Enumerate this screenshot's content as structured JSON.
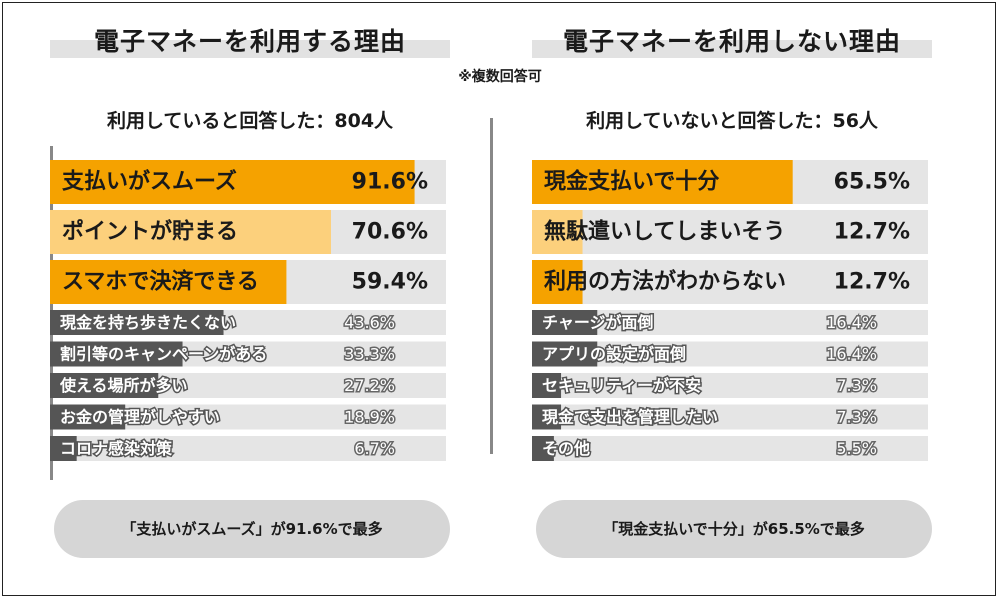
{
  "note": "※複数回答可",
  "colors": {
    "top1": "#f5a200",
    "top2": "#fcd07c",
    "track": "#e5e5e5",
    "minor_bar": "#555555",
    "divider": "#888888",
    "pill": "#d6d6d6"
  },
  "chart_data": [
    {
      "type": "bar",
      "orientation": "horizontal",
      "title": "電子マネーを利用する理由",
      "respondents": "利用していると回答した：804人",
      "summary": "「支払いがスムーズ」が91.6%で最多",
      "unit": "%",
      "xlim": [
        0,
        100
      ],
      "categories": [
        "支払いがスムーズ",
        "ポイントが貯まる",
        "スマホで決済できる",
        "現金を持ち歩きたくない",
        "割引等のキャンペーンがある",
        "使える場所が多い",
        "お金の管理がしやすい",
        "コロナ感染対策"
      ],
      "values": [
        91.6,
        70.6,
        59.4,
        43.6,
        33.3,
        27.2,
        18.9,
        6.7
      ],
      "labels": [
        "91.6%",
        "70.6%",
        "59.4%",
        "43.6%",
        "33.3%",
        "27.2%",
        "18.9%",
        "6.7%"
      ]
    },
    {
      "type": "bar",
      "orientation": "horizontal",
      "title": "電子マネーを利用しない理由",
      "respondents": "利用していないと回答した：56人",
      "summary": "「現金支払いで十分」が65.5%で最多",
      "unit": "%",
      "xlim": [
        0,
        100
      ],
      "categories": [
        "現金支払いで十分",
        "無駄遣いしてしまいそう",
        "利用の方法がわからない",
        "チャージが面倒",
        "アプリの設定が面倒",
        "セキュリティーが不安",
        "現金で支出を管理したい",
        "その他"
      ],
      "values": [
        65.5,
        12.7,
        12.7,
        16.4,
        16.4,
        7.3,
        7.3,
        5.5
      ],
      "labels": [
        "65.5%",
        "12.7%",
        "12.7%",
        "16.4%",
        "16.4%",
        "7.3%",
        "7.3%",
        "5.5%"
      ]
    }
  ]
}
